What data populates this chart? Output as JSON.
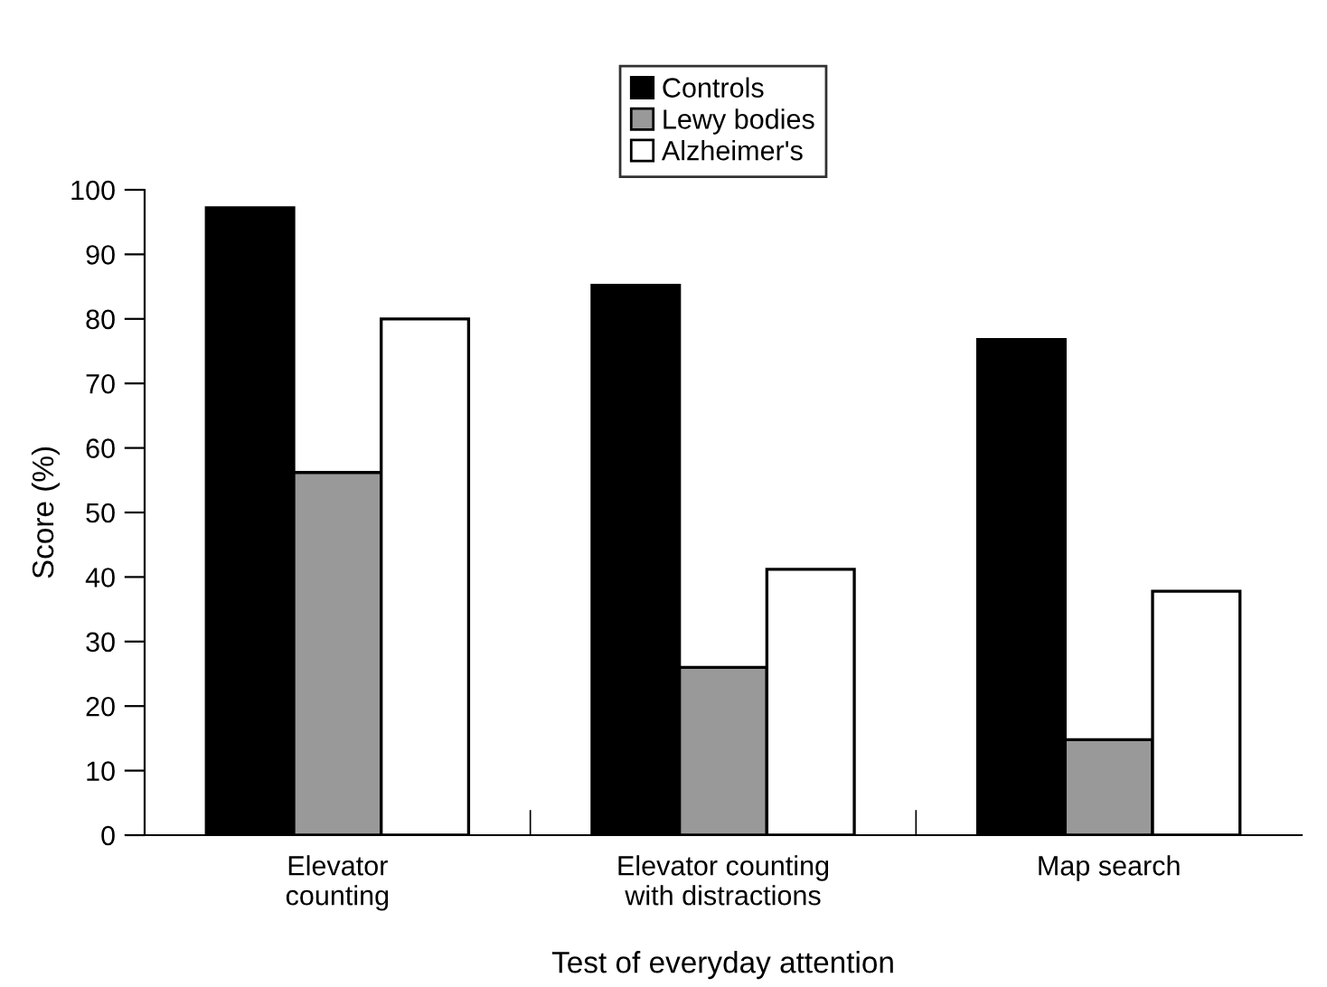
{
  "chart_data": {
    "type": "bar",
    "xlabel": "Test of everyday attention",
    "ylabel": "Score (%)",
    "categories": [
      "Elevator\ncounting",
      "Elevator counting\nwith distractions",
      "Map search"
    ],
    "series": [
      {
        "name": "Controls",
        "color": "#000000",
        "values": [
          97.2,
          85.2,
          76.8
        ]
      },
      {
        "name": "Lewy bodies",
        "color": "#999999",
        "values": [
          56.2,
          26,
          14.8
        ]
      },
      {
        "name": "Alzheimer's",
        "color": "#ffffff",
        "values": [
          80,
          41.2,
          37.8
        ]
      }
    ],
    "ylim": [
      0,
      100
    ],
    "yticks": [
      0,
      10,
      20,
      30,
      40,
      50,
      60,
      70,
      80,
      90,
      100
    ],
    "grid": false,
    "legend": "top"
  }
}
